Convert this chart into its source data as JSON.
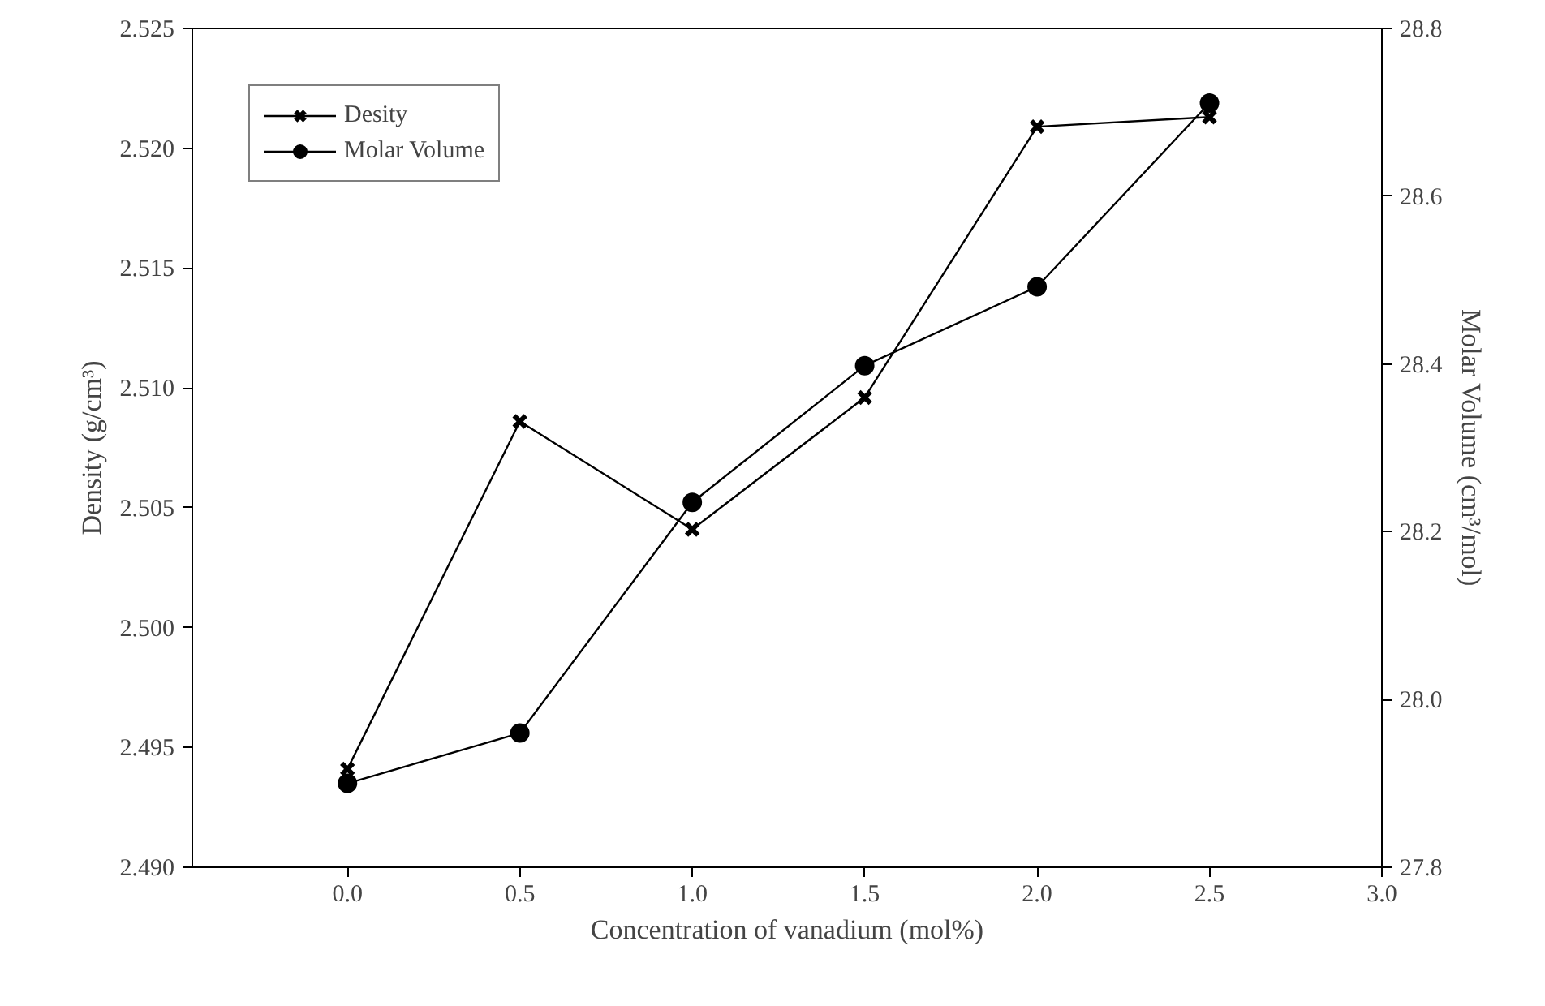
{
  "chart_data": {
    "type": "line",
    "xlabel": "Concentration of vanadium (mol%)",
    "ylabel": "Density (g/cm³)",
    "y2label": "Molar Volume (cm³/mol)",
    "x": [
      0.0,
      0.5,
      1.0,
      1.5,
      2.0,
      2.5
    ],
    "series": [
      {
        "name": "Desity",
        "color": "#000000",
        "marker": "cross",
        "values": [
          2.4941,
          2.5086,
          2.5041,
          2.5096,
          2.5209,
          2.5213
        ]
      },
      {
        "name": "Molar Volume",
        "color": "#000000",
        "marker": "circle",
        "axis": "y2",
        "values": [
          27.9,
          27.96,
          28.235,
          28.398,
          28.492,
          28.711
        ]
      }
    ],
    "xlim": [
      -0.45,
      3.0
    ],
    "xticks": [
      {
        "value": 0,
        "label": "0.0"
      },
      {
        "value": 0.5,
        "label": "0.5"
      },
      {
        "value": 1,
        "label": "1.0"
      },
      {
        "value": 1.5,
        "label": "1.5"
      },
      {
        "value": 2,
        "label": "2.0"
      },
      {
        "value": 2.5,
        "label": "2.5"
      },
      {
        "value": 3,
        "label": "3.0"
      }
    ],
    "ylim": [
      2.49,
      2.525
    ],
    "yticks": [
      {
        "value": 2.49,
        "label": "2.490"
      },
      {
        "value": 2.495,
        "label": "2.495"
      },
      {
        "value": 2.5,
        "label": "2.500"
      },
      {
        "value": 2.505,
        "label": "2.505"
      },
      {
        "value": 2.51,
        "label": "2.510"
      },
      {
        "value": 2.515,
        "label": "2.515"
      },
      {
        "value": 2.52,
        "label": "2.520"
      },
      {
        "value": 2.525,
        "label": "2.525"
      }
    ],
    "y2lim": [
      27.8,
      28.8
    ],
    "y2ticks": [
      {
        "value": 27.8,
        "label": "27.8"
      },
      {
        "value": 28.0,
        "label": "28.0"
      },
      {
        "value": 28.2,
        "label": "28.2"
      },
      {
        "value": 28.4,
        "label": "28.4"
      },
      {
        "value": 28.6,
        "label": "28.6"
      },
      {
        "value": 28.8,
        "label": "28.8"
      }
    ],
    "grid": false,
    "legend": "top left",
    "line_style": "solid"
  }
}
